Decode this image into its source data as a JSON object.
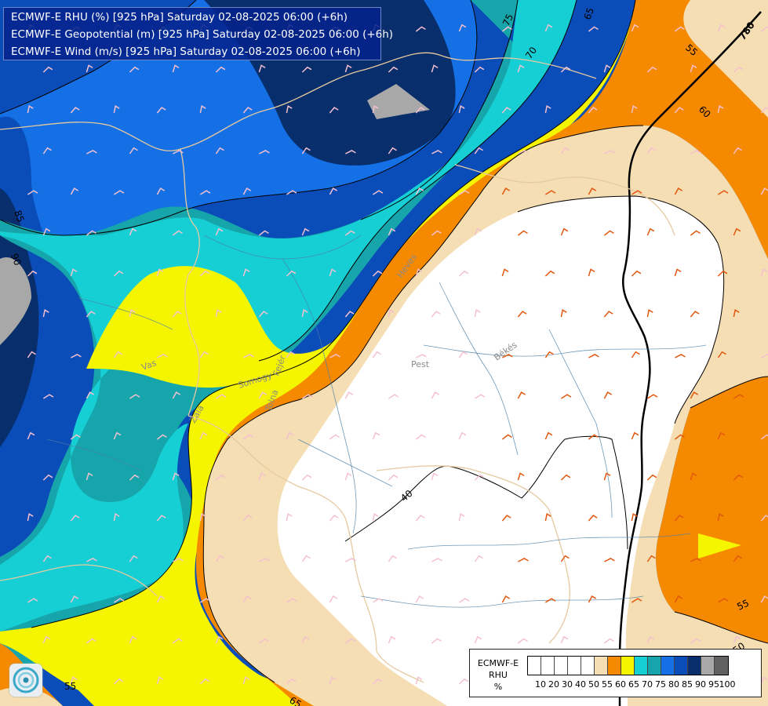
{
  "header": {
    "lines": [
      "ECMWF-E RHU (%) [925 hPa] Saturday 02-08-2025 06:00 (+6h)",
      "ECMWF-E Geopotential (m) [925 hPa] Saturday 02-08-2025 06:00 (+6h)",
      "ECMWF-E Wind (m/s) [925 hPa] Saturday 02-08-2025 06:00 (+6h)"
    ]
  },
  "legend": {
    "title_lines": [
      "ECMWF-E",
      "RHU",
      "%"
    ],
    "swatches": [
      {
        "color": "#ffffff"
      },
      {
        "color": "#ffffff"
      },
      {
        "color": "#ffffff"
      },
      {
        "color": "#ffffff"
      },
      {
        "color": "#ffffff"
      },
      {
        "color": "#f5deb3"
      },
      {
        "color": "#f58a00"
      },
      {
        "color": "#f5f500"
      },
      {
        "color": "#16cfd4"
      },
      {
        "color": "#16a5aa"
      },
      {
        "color": "#1470e4"
      },
      {
        "color": "#0a4cb8"
      },
      {
        "color": "#082e6b"
      },
      {
        "color": "#a8a8a8"
      },
      {
        "color": "#606060"
      }
    ],
    "ticks": [
      "10",
      "20",
      "30",
      "40",
      "50",
      "55",
      "60",
      "65",
      "70",
      "75",
      "80",
      "85",
      "90",
      "95",
      "100"
    ]
  },
  "contour_labels": [
    "75",
    "70",
    "65",
    "780",
    "55",
    "60",
    "85",
    "90",
    "40",
    "55",
    "50",
    "55",
    "65"
  ],
  "place_labels": [
    "Vas",
    "Zala",
    "Somogy",
    "Fejér",
    "Tolna",
    "Pest",
    "Heves",
    "Békés"
  ],
  "colors": {
    "rhu_50_55": "#f5deb3",
    "rhu_55_60": "#f58a00",
    "rhu_60_65": "#f5f500",
    "rhu_65_70": "#16cfd4",
    "rhu_70_75": "#16a5aa",
    "rhu_75_80": "#1470e4",
    "rhu_80_85": "#0a4cb8",
    "rhu_85_90": "#082e6b",
    "rhu_90_95": "#a8a8a8"
  }
}
